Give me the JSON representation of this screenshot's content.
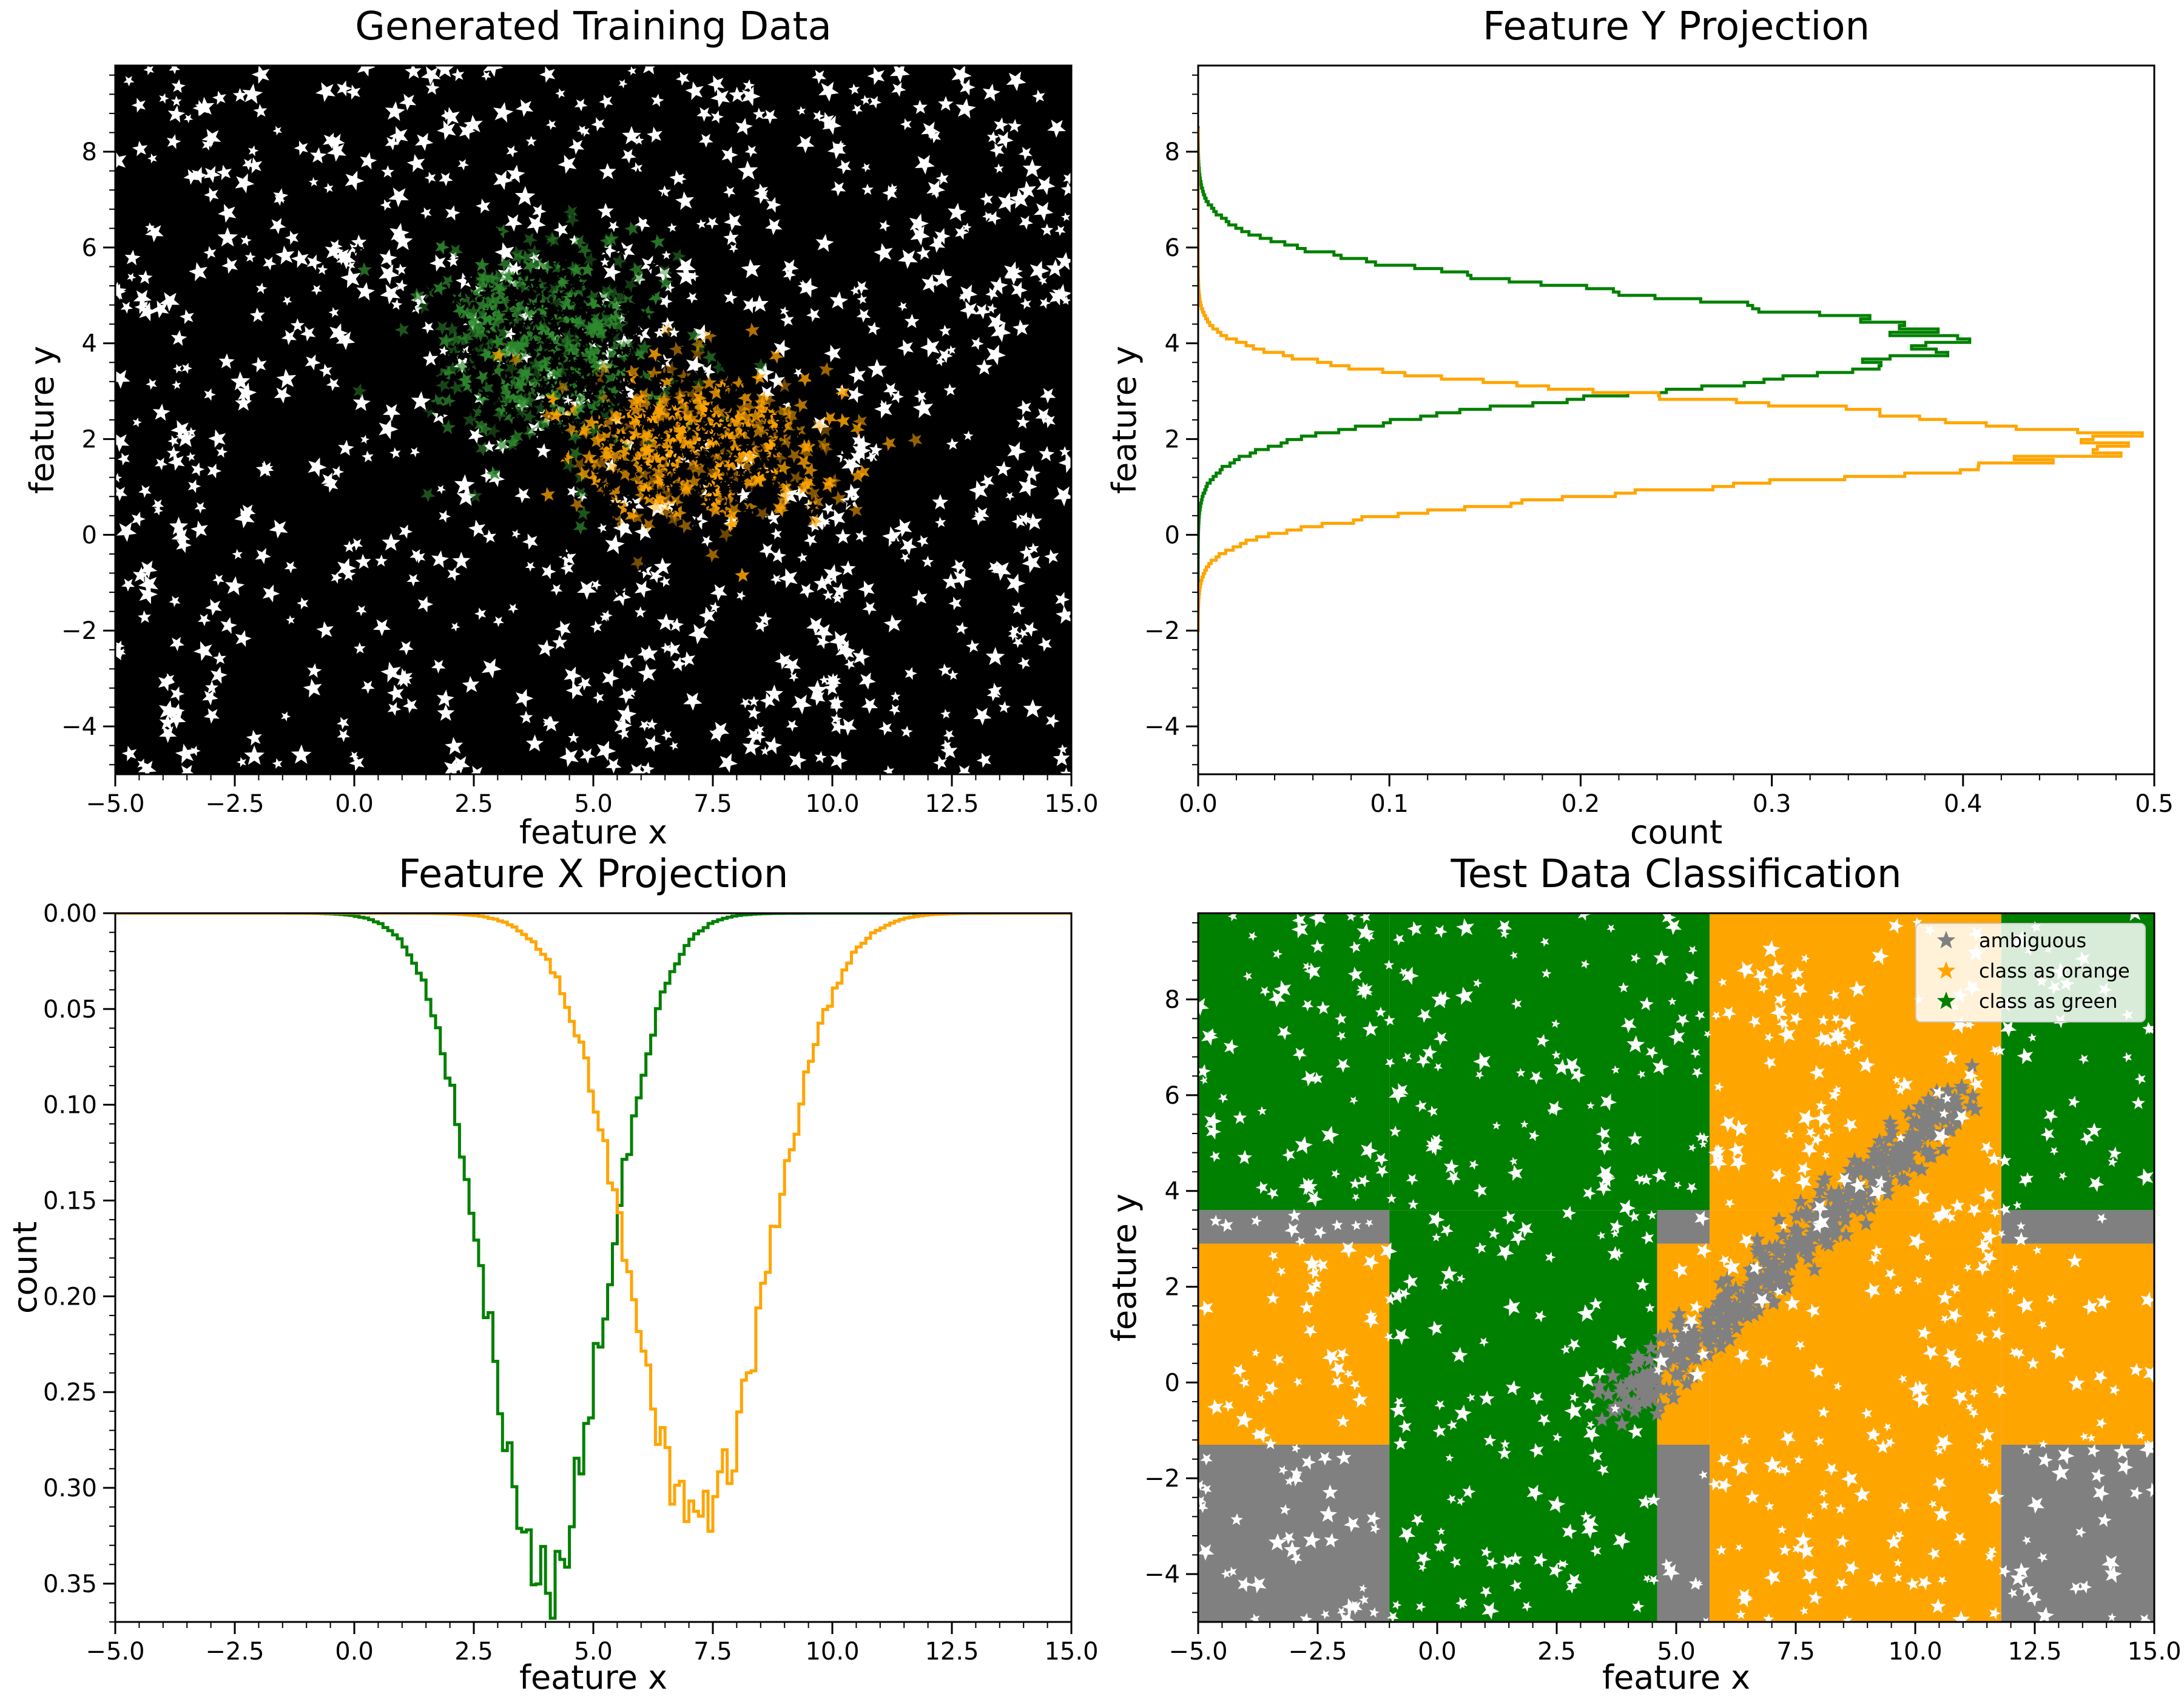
{
  "chart_data": [
    {
      "id": "training",
      "type": "scatter",
      "title": "Generated Training Data",
      "xlabel": "feature x",
      "ylabel": "feature y",
      "xlim": [
        -5,
        15
      ],
      "ylim": [
        -5,
        9.8
      ],
      "xticks": [
        "−5.0",
        "−2.5",
        "0.0",
        "2.5",
        "5.0",
        "7.5",
        "10.0",
        "12.5",
        "15.0"
      ],
      "yticks": [
        "−4",
        "−2",
        "0",
        "2",
        "4",
        "6",
        "8"
      ],
      "marker": "star",
      "background_points": "black",
      "clusters": [
        {
          "color": "#2e8b2e",
          "center": [
            4.0,
            4.0
          ],
          "spread": [
            1.3,
            1.1
          ]
        },
        {
          "color": "#ffa500",
          "center": [
            7.2,
            1.8
          ],
          "spread": [
            1.4,
            0.8
          ]
        }
      ],
      "grid": false
    },
    {
      "id": "yproj",
      "type": "line",
      "title": "Feature Y Projection",
      "xlabel": "count",
      "ylabel": "feature y",
      "xlim": [
        0,
        0.5
      ],
      "ylim": [
        -5,
        9.8
      ],
      "xticks": [
        "0.0",
        "0.1",
        "0.2",
        "0.3",
        "0.4",
        "0.5"
      ],
      "yticks": [
        "−4",
        "−2",
        "0",
        "2",
        "4",
        "6",
        "8"
      ],
      "series": [
        {
          "color": "#008000",
          "mean": 4.0,
          "sigma": 1.0,
          "peak": 0.39
        },
        {
          "color": "#ffa500",
          "mean": 1.9,
          "sigma": 0.85,
          "peak": 0.48
        }
      ],
      "grid": false
    },
    {
      "id": "xproj",
      "type": "line",
      "title": "Feature X Projection",
      "xlabel": "feature x",
      "ylabel": "count",
      "xlim": [
        -5,
        15
      ],
      "ylim": [
        0,
        0.37
      ],
      "y_inverted": true,
      "xticks": [
        "−5.0",
        "−2.5",
        "0.0",
        "2.5",
        "5.0",
        "7.5",
        "10.0",
        "12.5",
        "15.0"
      ],
      "yticks": [
        "0.00",
        "0.05",
        "0.10",
        "0.15",
        "0.20",
        "0.25",
        "0.30",
        "0.35"
      ],
      "series": [
        {
          "color": "#008000",
          "mean": 4.0,
          "sigma": 1.2,
          "peak": 0.35
        },
        {
          "color": "#ffa500",
          "mean": 7.2,
          "sigma": 1.4,
          "peak": 0.32
        }
      ],
      "grid": false
    },
    {
      "id": "test",
      "type": "scatter",
      "title": "Test Data Classification",
      "xlabel": "feature x",
      "ylabel": "feature y",
      "xlim": [
        -5,
        15
      ],
      "ylim": [
        -5,
        9.8
      ],
      "xticks": [
        "−5.0",
        "−2.5",
        "0.0",
        "2.5",
        "5.0",
        "7.5",
        "10.0",
        "12.5",
        "15.0"
      ],
      "yticks": [
        "−4",
        "−2",
        "0",
        "2",
        "4",
        "6",
        "8"
      ],
      "marker": "star",
      "legend_position": "top-right",
      "legend": [
        {
          "label": "ambiguous",
          "color": "#808080"
        },
        {
          "label": "class as orange",
          "color": "#ffa500"
        },
        {
          "label": "class as green",
          "color": "#008000"
        }
      ],
      "regions": {
        "x_bands": [
          [
            -5,
            -1,
            "A"
          ],
          [
            -1,
            4.6,
            "G"
          ],
          [
            4.6,
            5.7,
            "A"
          ],
          [
            5.7,
            11.8,
            "O"
          ],
          [
            11.8,
            15,
            "A"
          ]
        ],
        "y_bands": [
          [
            -5,
            -1.3,
            "A"
          ],
          [
            -1.3,
            2.9,
            "O"
          ],
          [
            2.9,
            3.6,
            "A"
          ],
          [
            3.6,
            9.8,
            "G"
          ]
        ]
      },
      "grid": false
    }
  ]
}
